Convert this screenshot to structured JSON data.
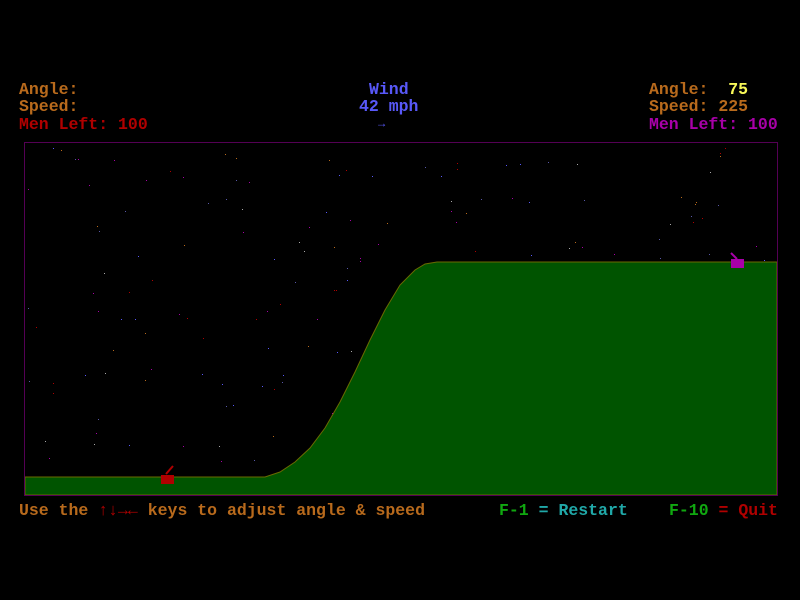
{
  "player1": {
    "angle_label": "Angle:",
    "angle_value": "",
    "speed_label": "Speed:",
    "speed_value": "",
    "men_label": "Men Left:",
    "men_value": "100",
    "color": "#b00000"
  },
  "wind": {
    "label": "Wind",
    "speed": "42 mph",
    "direction_icon": "arrow-right",
    "arrow": "→"
  },
  "player2": {
    "angle_label": "Angle:",
    "angle_value": "75",
    "speed_label": "Speed:",
    "speed_value": "225",
    "men_label": "Men Left:",
    "men_value": "100",
    "color": "#a800a8"
  },
  "footer": {
    "instructions_prefix": "Use the",
    "arrow_keys": "↑↓→←",
    "instructions_suffix": "keys to adjust angle & speed",
    "restart_key": "F-1",
    "equals1": "=",
    "restart_label": "Restart",
    "quit_key": "F-10",
    "equals2": "=",
    "quit_label": "Quit"
  },
  "colors": {
    "terrain": "#005400",
    "terrain_edge": "#6a6a00",
    "border": "#540054",
    "sky": "#000000"
  }
}
